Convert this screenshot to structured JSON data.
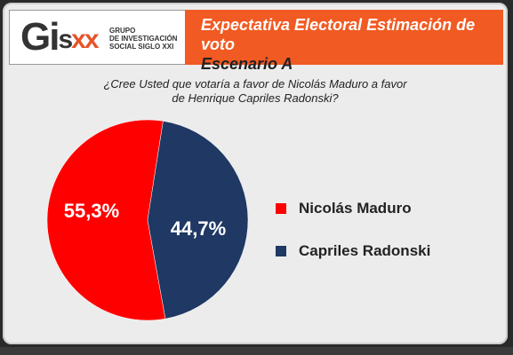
{
  "header": {
    "logo": {
      "mark": "Gi",
      "mark_s": "s",
      "mark_xx": "xx",
      "lines": [
        "GRUPO",
        "DE INVESTIGACIÓN",
        "SOCIAL SIGLO XXI"
      ]
    },
    "title_line1": "Expectativa Electoral Estimación de voto",
    "title_line2": "Escenario A"
  },
  "question": {
    "line1": "¿Cree Usted que votaría a favor de Nicolás Maduro a favor",
    "line2": "de Henrique Capriles Radonski?"
  },
  "colors": {
    "accent": "#f15a22",
    "maduro": "#ff0000",
    "capriles": "#1f3864"
  },
  "chart_data": {
    "type": "pie",
    "title": "",
    "slices": [
      {
        "name": "Nicolás Maduro",
        "value": 55.3,
        "label": "55,3%",
        "color": "#ff0000"
      },
      {
        "name": "Capriles Radonski",
        "value": 44.7,
        "label": "44,7%",
        "color": "#1f3864"
      }
    ],
    "legend_position": "right"
  }
}
